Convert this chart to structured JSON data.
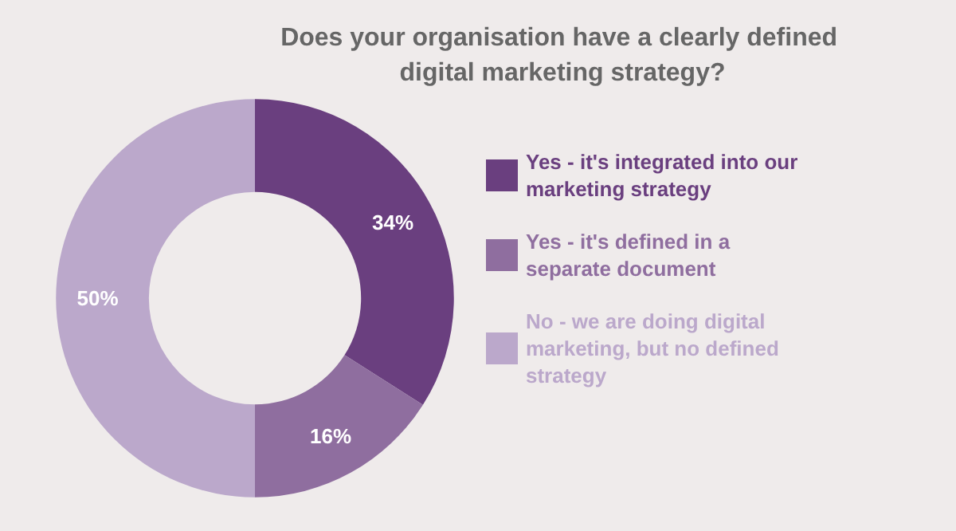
{
  "chart_data": {
    "type": "donut",
    "title": "Does your organisation have a clearly defined digital marketing strategy?",
    "categories": [
      "Yes - it's integrated into our marketing strategy",
      "Yes - it's defined in a separate document",
      "No - we are doing digital marketing, but no defined strategy"
    ],
    "values": [
      34,
      16,
      50
    ],
    "colors": [
      "#6a3f7f",
      "#8f6e9f",
      "#bba8cb"
    ],
    "value_labels": [
      "34%",
      "16%",
      "50%"
    ],
    "legend": "right"
  }
}
